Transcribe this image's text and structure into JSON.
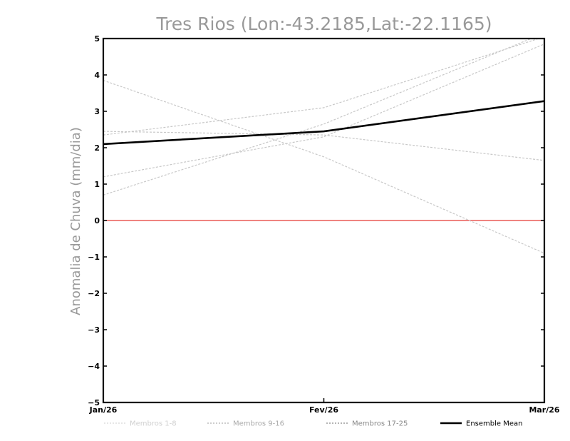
{
  "chart_data": {
    "type": "line",
    "title": "Tres Rios (Lon:-43.2185,Lat:-22.1165)",
    "xlabel": "",
    "ylabel": "Anomalia de Chuva (mm/dia)",
    "categories": [
      "Jan/26",
      "Fev/26",
      "Mar/26"
    ],
    "ylim": [
      -5,
      5
    ],
    "yticks": [
      5,
      4,
      3,
      2,
      1,
      0,
      -1,
      -2,
      -3,
      -4,
      -5
    ],
    "grid": false,
    "legend_position": "bottom",
    "zero_line": {
      "value": 0,
      "color": "#e53935"
    },
    "members": [
      {
        "values": [
          3.85,
          1.75,
          -0.9
        ]
      },
      {
        "values": [
          2.45,
          2.35,
          1.65
        ]
      },
      {
        "values": [
          2.35,
          3.1,
          5.05
        ]
      },
      {
        "values": [
          0.7,
          2.65,
          5.15
        ]
      },
      {
        "values": [
          1.2,
          2.3,
          4.85
        ]
      }
    ],
    "member_color": "#c8c8c8",
    "ensemble_mean": {
      "values": [
        2.1,
        2.45,
        3.28
      ],
      "color": "#000000"
    },
    "legend": [
      {
        "label": "Membros 1-8",
        "style": "dashed-light",
        "text_color": "#d0d0d0"
      },
      {
        "label": "Membros 9-16",
        "style": "dashed-medium",
        "text_color": "#aaaaaa"
      },
      {
        "label": "Membros 17-25",
        "style": "dashed-dark",
        "text_color": "#888888"
      },
      {
        "label": "Ensemble Mean",
        "style": "solid-black",
        "text_color": "#000000"
      }
    ]
  }
}
